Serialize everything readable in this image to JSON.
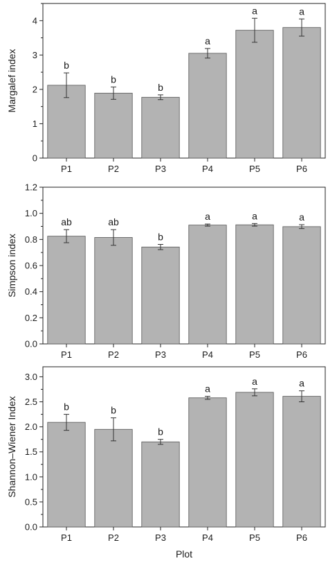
{
  "chart_data": [
    {
      "type": "bar",
      "categories": [
        "P1",
        "P2",
        "P3",
        "P4",
        "P5",
        "P6"
      ],
      "values": [
        2.12,
        1.89,
        1.77,
        3.05,
        3.72,
        3.8
      ],
      "errors": [
        0.36,
        0.18,
        0.07,
        0.14,
        0.35,
        0.25
      ],
      "significance": [
        "b",
        "b",
        "b",
        "a",
        "a",
        "a"
      ],
      "ylabel": "Margalef index",
      "xlabel": "",
      "ylim": [
        0,
        4.5
      ],
      "yticks": [
        "0",
        "1",
        "2",
        "3",
        "4"
      ],
      "ytick_values": [
        0,
        1,
        2,
        3,
        4
      ],
      "grid": false
    },
    {
      "type": "bar",
      "categories": [
        "P1",
        "P2",
        "P3",
        "P4",
        "P5",
        "P6"
      ],
      "values": [
        0.825,
        0.815,
        0.742,
        0.91,
        0.912,
        0.898
      ],
      "errors": [
        0.05,
        0.06,
        0.02,
        0.008,
        0.01,
        0.015
      ],
      "significance": [
        "ab",
        "ab",
        "b",
        "a",
        "a",
        "a"
      ],
      "ylabel": "Simpson index",
      "xlabel": "",
      "ylim": [
        0,
        1.2
      ],
      "yticks": [
        "0.0",
        "0.2",
        "0.4",
        "0.6",
        "0.8",
        "1.0",
        "1.2"
      ],
      "ytick_values": [
        0,
        0.2,
        0.4,
        0.6,
        0.8,
        1.0,
        1.2
      ],
      "grid": false
    },
    {
      "type": "bar",
      "categories": [
        "P1",
        "P2",
        "P3",
        "P4",
        "P5",
        "P6"
      ],
      "values": [
        2.09,
        1.95,
        1.7,
        2.58,
        2.69,
        2.61
      ],
      "errors": [
        0.16,
        0.23,
        0.05,
        0.03,
        0.07,
        0.11
      ],
      "significance": [
        "b",
        "b",
        "b",
        "a",
        "a",
        "a"
      ],
      "ylabel": "Shannon–Wiener Index",
      "xlabel": "Plot",
      "ylim": [
        0,
        3.2
      ],
      "yticks": [
        "0.0",
        "0.5",
        "1.0",
        "1.5",
        "2.0",
        "2.5",
        "3.0"
      ],
      "ytick_values": [
        0,
        0.5,
        1.0,
        1.5,
        2.0,
        2.5,
        3.0
      ],
      "grid": false
    }
  ]
}
